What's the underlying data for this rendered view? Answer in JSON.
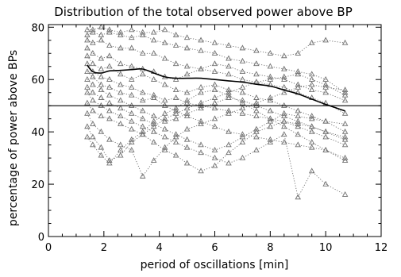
{
  "chart_data": {
    "type": "scatter",
    "title": "Distribution of the total observed power above BP",
    "xlabel": "period of oscillations [min]",
    "ylabel": "percentage of power above BPs",
    "xlim": [
      0,
      12
    ],
    "ylim": [
      0,
      81
    ],
    "xticks": [
      0,
      2,
      4,
      6,
      8,
      10,
      12
    ],
    "yticks": [
      0,
      20,
      40,
      60,
      80
    ],
    "grid": false,
    "marker": "triangle",
    "point_color": "#707070",
    "reference_line": {
      "y": 50,
      "color": "#000000"
    },
    "mean_curve": {
      "color": "#000000",
      "x": [
        1.4,
        1.6,
        1.9,
        2.2,
        2.6,
        3.0,
        3.4,
        3.8,
        4.2,
        4.6,
        5.0,
        5.5,
        6.0,
        6.5,
        7.0,
        7.5,
        8.0,
        8.5,
        9.0,
        9.5,
        10.0,
        10.7
      ],
      "y": [
        65.5,
        63.0,
        62.5,
        63.3,
        63.5,
        63.8,
        64.0,
        62.5,
        61.0,
        60.5,
        60.5,
        60.5,
        60.0,
        59.5,
        59.0,
        58.2,
        57.5,
        56.0,
        54.5,
        52.5,
        50.5,
        48.0
      ]
    },
    "series": [
      {
        "x": [
          1.4,
          1.6,
          1.9,
          2.2,
          2.6,
          3.0,
          3.4,
          3.8,
          4.2,
          4.6,
          5.0,
          5.5,
          6.0,
          6.5,
          7.0,
          7.5,
          8.0,
          8.5,
          9.0,
          9.5,
          10.0,
          10.7
        ],
        "y": [
          79,
          79,
          80,
          79,
          78,
          79,
          78,
          78,
          79,
          77,
          76,
          75,
          74,
          73,
          72,
          71,
          70,
          69,
          70,
          74,
          75,
          74
        ]
      },
      {
        "x": [
          1.4,
          1.6,
          1.9,
          2.2,
          2.6,
          3.0,
          3.4,
          3.8,
          4.2,
          4.6,
          5.0,
          5.5,
          6.0,
          6.5,
          7.0,
          7.5,
          8.0,
          8.5,
          9.0,
          9.5,
          10.0,
          10.7
        ],
        "y": [
          77,
          78,
          77,
          78,
          77,
          76,
          77,
          75,
          74,
          73,
          72,
          71,
          70,
          68,
          67,
          66,
          65,
          64,
          63,
          62,
          60,
          55
        ]
      },
      {
        "x": [
          1.4,
          1.6,
          1.9,
          2.2,
          2.6,
          3.0,
          3.4,
          3.8,
          4.2,
          4.6,
          5.0,
          5.5,
          6.0,
          6.5,
          7.0,
          7.5,
          8.0,
          8.5,
          9.0,
          9.5,
          10.0,
          10.7
        ],
        "y": [
          75,
          74,
          75,
          73,
          72,
          72,
          70,
          70,
          68,
          66,
          65,
          64,
          63,
          62,
          60,
          59,
          58,
          57,
          55,
          53,
          51,
          47
        ]
      },
      {
        "x": [
          1.4,
          1.6,
          1.9,
          2.2,
          2.6,
          3.0,
          3.4,
          3.8,
          4.2,
          4.6,
          5.0,
          5.5,
          6.0,
          6.5,
          7.0,
          7.5,
          8.0,
          8.5,
          9.0,
          9.5,
          10.0,
          10.7
        ],
        "y": [
          72,
          70,
          68,
          69,
          66,
          65,
          64,
          63,
          61,
          60,
          62,
          64,
          66,
          65,
          63,
          62,
          61,
          60,
          58,
          56,
          55,
          52
        ]
      },
      {
        "x": [
          1.4,
          1.6,
          1.9,
          2.2,
          2.6,
          3.0,
          3.4,
          3.8,
          4.2,
          4.6,
          5.0,
          5.5,
          6.0,
          6.5,
          7.0,
          7.5,
          8.0,
          8.5,
          9.0,
          9.5,
          10.0,
          10.7
        ],
        "y": [
          69,
          66,
          64,
          65,
          62,
          60,
          62,
          60,
          58,
          56,
          55,
          57,
          58,
          56,
          55,
          53,
          52,
          50,
          48,
          46,
          44,
          40
        ]
      },
      {
        "x": [
          1.4,
          1.6,
          1.9,
          2.2,
          2.6,
          3.0,
          3.4,
          3.8,
          4.2,
          4.6,
          5.0,
          5.5,
          6.0,
          6.5,
          7.0,
          7.5,
          8.0,
          8.5,
          9.0,
          9.5,
          10.0,
          10.7
        ],
        "y": [
          66,
          63,
          61,
          60,
          58,
          57,
          55,
          54,
          52,
          53,
          51,
          50,
          49,
          48,
          47,
          46,
          45,
          44,
          43,
          42,
          40,
          37
        ]
      },
      {
        "x": [
          1.4,
          1.6,
          1.9,
          2.2,
          2.6,
          3.0,
          3.4,
          3.8,
          4.2,
          4.6,
          5.0,
          5.5,
          6.0,
          6.5,
          7.0,
          7.5,
          8.0,
          8.5,
          9.0,
          9.5,
          10.0,
          10.7
        ],
        "y": [
          63,
          61,
          58,
          57,
          55,
          54,
          52,
          53,
          50,
          48,
          46,
          44,
          42,
          40,
          39,
          38,
          37,
          36,
          35,
          34,
          33,
          30
        ]
      },
      {
        "x": [
          1.4,
          1.6,
          1.9,
          2.2,
          2.6,
          3.0,
          3.4,
          3.8,
          4.2,
          4.6,
          5.0,
          5.5,
          6.0,
          6.5,
          7.0,
          7.5,
          8.0,
          8.5,
          9.0,
          9.5,
          10.0,
          10.7
        ],
        "y": [
          60,
          58,
          56,
          54,
          52,
          50,
          48,
          46,
          44,
          45,
          47,
          49,
          51,
          53,
          52,
          50,
          48,
          46,
          44,
          42,
          40,
          38
        ]
      },
      {
        "x": [
          1.4,
          1.6,
          1.9,
          2.2,
          2.6,
          3.0,
          3.4,
          3.8,
          4.2,
          4.6,
          5.0,
          5.5,
          6.0,
          6.5,
          7.0,
          7.5,
          8.0,
          8.5,
          9.0,
          9.5,
          10.0,
          10.7
        ],
        "y": [
          57,
          55,
          53,
          51,
          49,
          47,
          45,
          43,
          41,
          39,
          37,
          35,
          33,
          35,
          38,
          41,
          44,
          47,
          46,
          45,
          44,
          43
        ]
      },
      {
        "x": [
          1.4,
          1.6,
          1.9,
          2.2,
          2.6,
          3.0,
          3.4,
          3.8,
          4.2,
          4.6,
          5.0,
          5.5,
          6.0,
          6.5,
          7.0,
          7.5,
          8.0,
          8.5,
          9.0,
          9.5,
          10.0,
          10.7
        ],
        "y": [
          55,
          52,
          50,
          48,
          46,
          44,
          42,
          40,
          38,
          36,
          34,
          32,
          30,
          28,
          30,
          33,
          36,
          39,
          15,
          25,
          20,
          16
        ]
      },
      {
        "x": [
          1.4,
          1.6,
          1.9,
          2.2,
          2.6,
          3.0,
          3.4,
          3.8,
          4.2,
          4.6,
          5.0,
          5.5,
          6.0,
          6.5,
          7.0,
          7.5,
          8.0,
          8.5,
          9.0,
          9.5,
          10.0,
          10.7
        ],
        "y": [
          51,
          48,
          46,
          45,
          43,
          41,
          39,
          36,
          33,
          31,
          28,
          25,
          27,
          32,
          36,
          40,
          42,
          44,
          42,
          40,
          38,
          35
        ]
      },
      {
        "x": [
          1.4,
          1.6,
          1.9,
          2.2,
          2.6,
          3.0,
          3.4,
          3.8,
          4.2,
          4.6,
          5.0,
          5.5,
          6.0,
          6.5,
          7.0,
          7.5,
          8.0,
          8.5,
          9.0,
          9.5,
          10.0,
          10.7
        ],
        "y": [
          47,
          43,
          40,
          37,
          35,
          33,
          23,
          29,
          34,
          38,
          41,
          43,
          45,
          47,
          49,
          51,
          53,
          55,
          57,
          58,
          57,
          56
        ]
      },
      {
        "x": [
          1.4,
          1.6,
          1.9,
          2.2,
          2.6,
          3.0,
          3.4,
          3.8,
          4.2,
          4.6,
          5.0,
          5.5,
          6.0,
          6.5,
          7.0,
          7.5,
          8.0,
          8.5,
          9.0,
          9.5,
          10.0,
          10.7
        ],
        "y": [
          42,
          38,
          34,
          29,
          31,
          36,
          39,
          42,
          45,
          47,
          49,
          51,
          53,
          55,
          57,
          59,
          60,
          61,
          62,
          60,
          58,
          54
        ]
      },
      {
        "x": [
          1.4,
          1.6,
          1.9,
          2.2,
          2.6,
          3.0,
          3.4,
          3.8,
          4.2,
          4.6,
          5.0,
          5.5,
          6.0,
          6.5,
          7.0,
          7.5,
          8.0,
          8.5,
          9.0,
          9.5,
          10.0,
          10.7
        ],
        "y": [
          38,
          35,
          31,
          28,
          33,
          37,
          40,
          44,
          47,
          49,
          52,
          55,
          56,
          54,
          51,
          48,
          45,
          42,
          39,
          36,
          33,
          29
        ]
      }
    ]
  }
}
